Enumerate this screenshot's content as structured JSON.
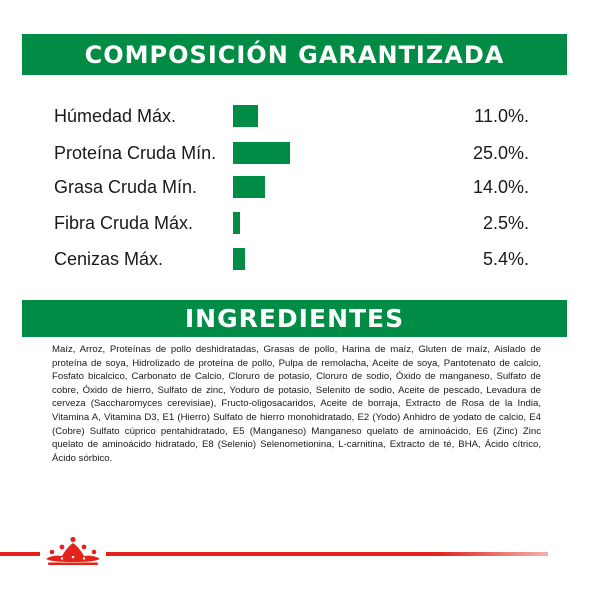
{
  "composition": {
    "title": "COMPOSICIÓN GARANTIZADA",
    "rows": [
      {
        "label": "Húmedad Máx.",
        "value": "11.0%.",
        "percent": 11.0
      },
      {
        "label": "Proteína Cruda Mín.",
        "value": "25.0%.",
        "percent": 25.0
      },
      {
        "label": "Grasa Cruda Mín.",
        "value": "14.0%.",
        "percent": 14.0
      },
      {
        "label": "Fibra Cruda Máx.",
        "value": "2.5%.",
        "percent": 2.5
      },
      {
        "label": "Cenizas Máx.",
        "value": "5.4%.",
        "percent": 5.4
      }
    ]
  },
  "ingredients": {
    "title": "INGREDIENTES",
    "text": "Maíz, Arroz, Proteínas de pollo deshidratadas, Grasas de pollo, Harina de maíz, Gluten de maíz, Aislado de proteína de soya, Hidrolizado de proteína de pollo, Pulpa de remolacha, Aceite de soya, Pantotenato de calcio, Fosfato bicalcico, Carbonato de Calcio, Cloruro de potasio, Cloruro de sodio, Óxido de manganeso, Sulfato de cobre, Óxido de hierro, Sulfato de zinc, Yoduro de potasio, Selenito de sodio, Aceite de pescado, Levadura de cerveza (Saccharomyces cerevisiae), Fructo-oligosacaridos, Aceite de borraja, Extracto de Rosa de la India, Vitamina A, Vitamina D3, E1 (Hierro) Sulfato de hierro monohidratado, E2 (Yodo) Anhidro de yodato de calcio, E4 (Cobre) Sulfato cúprico pentahidratado, E5 (Manganeso) Manganeso quelato de aminoácido, E6 (Zinc) Zinc quelato de aminoácido hidratado, E8 (Selenio) Selenometionina, L-carnitina, Extracto de té, BHA, Ácido cítrico, Ácido sórbico."
  },
  "colors": {
    "accent_green": "#008c45",
    "brand_red": "#e2231a"
  },
  "icons": {
    "brand": "crown-icon"
  }
}
